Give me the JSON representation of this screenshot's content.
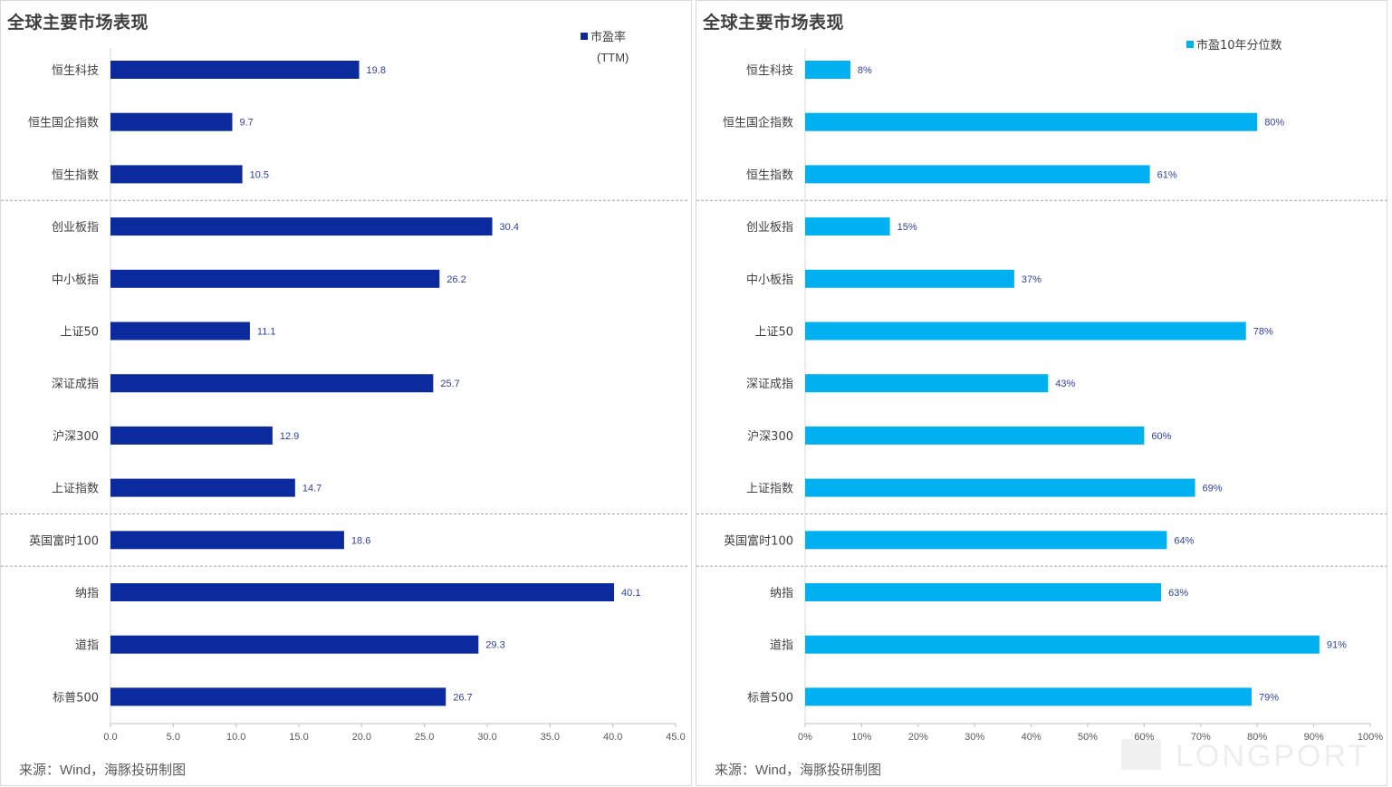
{
  "colors": {
    "pe_bar": "#0b2a9e",
    "pct_bar": "#00b0f0",
    "label_text": "#2f3f9f",
    "axis_text": "#595959",
    "divider": "#a6a6a6"
  },
  "panels": {
    "left": {
      "title": "全球主要市场表现",
      "source": "来源：Wind，海豚投研制图"
    },
    "right": {
      "title": "全球主要市场表现",
      "source": "来源：Wind，海豚投研制图"
    }
  },
  "watermark": {
    "brand": "LONGPORT"
  },
  "chart_data": [
    {
      "type": "bar",
      "orientation": "horizontal",
      "title": "全球主要市场表现",
      "categories": [
        "恒生科技",
        "恒生国企指数",
        "恒生指数",
        "创业板指",
        "中小板指",
        "上证50",
        "深证成指",
        "沪深300",
        "上证指数",
        "英国富时100",
        "纳指",
        "道指",
        "标普500"
      ],
      "series": [
        {
          "name": "市盈率",
          "name_line2": "(TTM)",
          "values": [
            19.8,
            9.7,
            10.5,
            30.4,
            26.2,
            11.1,
            25.7,
            12.9,
            14.7,
            18.6,
            40.1,
            29.3,
            26.7
          ],
          "labels": [
            "19.8",
            "9.7",
            "10.5",
            "30.4",
            "26.2",
            "11.1",
            "25.7",
            "12.9",
            "14.7",
            "18.6",
            "40.1",
            "29.3",
            "26.7"
          ],
          "color": "#0b2a9e"
        }
      ],
      "xlim": [
        0,
        45
      ],
      "xticks": [
        "0.0",
        "5.0",
        "10.0",
        "15.0",
        "20.0",
        "25.0",
        "30.0",
        "35.0",
        "40.0",
        "45.0"
      ],
      "group_dividers_after": [
        "恒生指数",
        "上证指数",
        "英国富时100"
      ],
      "legend_position": "top-right",
      "grid": false
    },
    {
      "type": "bar",
      "orientation": "horizontal",
      "title": "全球主要市场表现",
      "categories": [
        "恒生科技",
        "恒生国企指数",
        "恒生指数",
        "创业板指",
        "中小板指",
        "上证50",
        "深证成指",
        "沪深300",
        "上证指数",
        "英国富时100",
        "纳指",
        "道指",
        "标普500"
      ],
      "series": [
        {
          "name": "市盈10年分位数",
          "values": [
            8,
            80,
            61,
            15,
            37,
            78,
            43,
            60,
            69,
            64,
            63,
            91,
            79
          ],
          "labels": [
            "8%",
            "80%",
            "61%",
            "15%",
            "37%",
            "78%",
            "43%",
            "60%",
            "69%",
            "64%",
            "63%",
            "91%",
            "79%"
          ],
          "color": "#00b0f0"
        }
      ],
      "xlim": [
        0,
        100
      ],
      "xticks": [
        "0%",
        "10%",
        "20%",
        "30%",
        "40%",
        "50%",
        "60%",
        "70%",
        "80%",
        "90%",
        "100%"
      ],
      "group_dividers_after": [
        "恒生指数",
        "上证指数",
        "英国富时100"
      ],
      "legend_position": "top-right",
      "grid": false
    }
  ]
}
